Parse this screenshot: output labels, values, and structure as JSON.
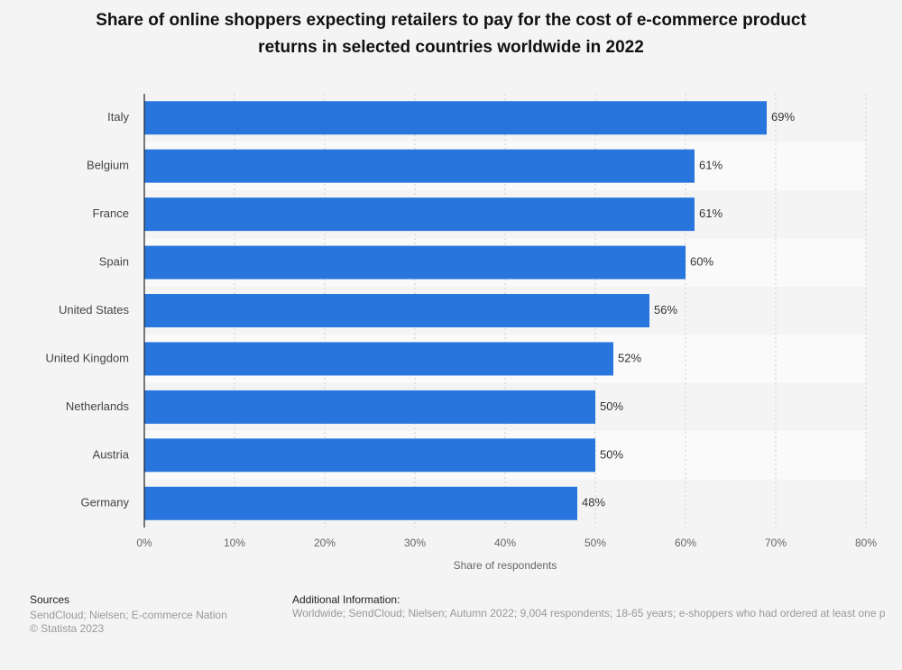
{
  "chart_data": {
    "type": "hbar",
    "title": "Share of online shoppers expecting retailers to pay for the cost of e-commerce product returns in selected countries worldwide in 2022",
    "categories": [
      "Italy",
      "Belgium",
      "France",
      "Spain",
      "United States",
      "United Kingdom",
      "Netherlands",
      "Austria",
      "Germany"
    ],
    "values": [
      69,
      61,
      61,
      60,
      56,
      52,
      50,
      50,
      48
    ],
    "value_labels": [
      "69%",
      "61%",
      "61%",
      "60%",
      "56%",
      "52%",
      "50%",
      "50%",
      "48%"
    ],
    "color": "#2876dd",
    "xlim": [
      0,
      80
    ],
    "xticks": [
      {
        "value": 0,
        "label": "0%"
      },
      {
        "value": 10,
        "label": "10%"
      },
      {
        "value": 20,
        "label": "20%"
      },
      {
        "value": 30,
        "label": "30%"
      },
      {
        "value": 40,
        "label": "40%"
      },
      {
        "value": 50,
        "label": "50%"
      },
      {
        "value": 60,
        "label": "60%"
      },
      {
        "value": 70,
        "label": "70%"
      },
      {
        "value": 80,
        "label": "80%"
      }
    ],
    "x_label": "Share of respondents",
    "grid": true
  },
  "footer": {
    "sources_title": "Sources",
    "sources": "SendCloud; Nielsen; E-commerce Nation",
    "copyright": "© Statista 2023",
    "info_title": "Additional Information:",
    "info": "Worldwide; SendCloud; Nielsen; Autumn 2022; 9,004 respondents; 18-65 years; e-shoppers who had ordered at least one p"
  }
}
